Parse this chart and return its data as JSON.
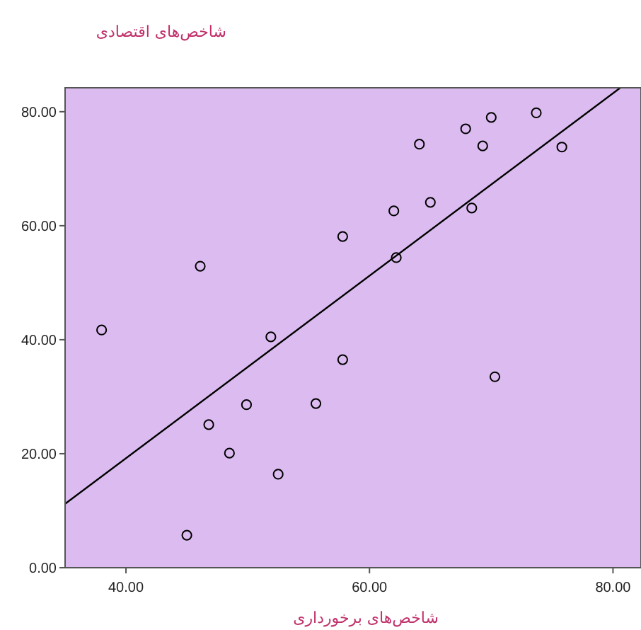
{
  "chart_data": {
    "type": "scatter",
    "xlabel": "شاخص‌های برخورداری",
    "ylabel": "شاخص‌های اقتصادی",
    "xlim": [
      35,
      82.3
    ],
    "ylim": [
      0,
      84.2
    ],
    "xticks": [
      {
        "value": 40,
        "label": "40.00"
      },
      {
        "value": 60,
        "label": "60.00"
      },
      {
        "value": 80,
        "label": "80.00"
      }
    ],
    "yticks": [
      {
        "value": 0,
        "label": "0.00"
      },
      {
        "value": 20,
        "label": "20.00"
      },
      {
        "value": 40,
        "label": "40.00"
      },
      {
        "value": 60,
        "label": "60.00"
      },
      {
        "value": 80,
        "label": "80.00"
      }
    ],
    "grid": false,
    "legend": false,
    "marker": "circle",
    "series": [
      {
        "color": "#000000",
        "x": [
          38.0,
          46.1,
          45.0,
          46.8,
          48.5,
          49.9,
          51.9,
          52.5,
          55.6,
          57.8,
          57.8,
          62.0,
          62.2,
          64.1,
          65.0,
          67.9,
          68.4,
          69.3,
          70.0,
          70.3,
          73.7,
          75.8
        ],
        "values": [
          41.7,
          52.9,
          5.7,
          25.1,
          20.1,
          28.6,
          40.5,
          16.4,
          28.8,
          58.1,
          36.5,
          62.6,
          54.4,
          74.3,
          64.1,
          77.0,
          63.1,
          74.0,
          79.0,
          33.5,
          79.8,
          73.8
        ]
      },
      {
        "type": "line",
        "marker": "none",
        "color": "#000000",
        "x": [
          35,
          80.6
        ],
        "values": [
          11.2,
          84.2
        ]
      }
    ]
  }
}
